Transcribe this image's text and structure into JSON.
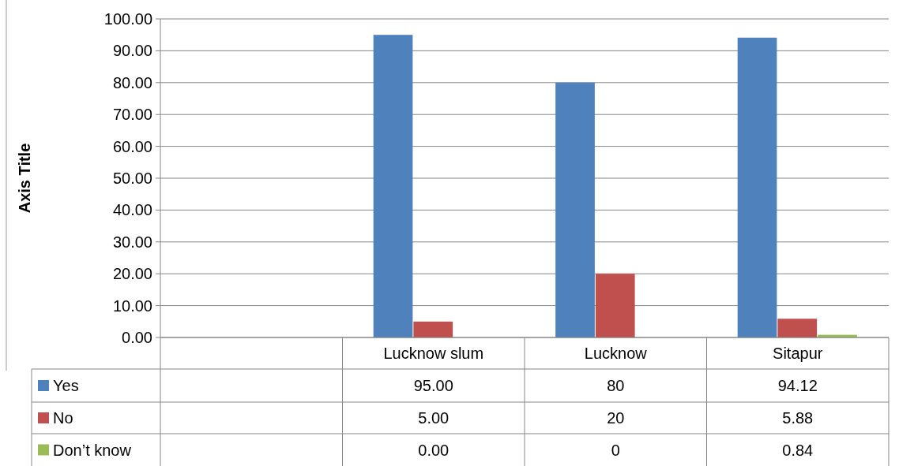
{
  "chart_data": {
    "type": "bar",
    "ylabel": "Axis Title",
    "categories": [
      null,
      "Lucknow slum",
      "Lucknow",
      "Sitapur"
    ],
    "series": [
      {
        "name": "Yes",
        "color": "#4f81bd",
        "values": [
          null,
          95.0,
          80,
          94.12
        ],
        "value_labels": [
          null,
          "95.00",
          "80",
          "94.12"
        ]
      },
      {
        "name": "No",
        "color": "#c0504d",
        "values": [
          null,
          5.0,
          20,
          5.88
        ],
        "value_labels": [
          null,
          "5.00",
          "20",
          "5.88"
        ]
      },
      {
        "name": "Don’t know",
        "color": "#9bbb59",
        "values": [
          null,
          0.0,
          0,
          0.84
        ],
        "value_labels": [
          null,
          "0.00",
          "0",
          "0.84"
        ]
      }
    ],
    "ylim": [
      0,
      100
    ],
    "yticks": [
      {
        "value": 0,
        "label": "0.00"
      },
      {
        "value": 10,
        "label": "10.00"
      },
      {
        "value": 20,
        "label": "20.00"
      },
      {
        "value": 30,
        "label": "30.00"
      },
      {
        "value": 40,
        "label": "40.00"
      },
      {
        "value": 50,
        "label": "50.00"
      },
      {
        "value": 60,
        "label": "60.00"
      },
      {
        "value": 70,
        "label": "70.00"
      },
      {
        "value": 80,
        "label": "80.00"
      },
      {
        "value": 90,
        "label": "90.00"
      },
      {
        "value": 100,
        "label": "100.00"
      }
    ],
    "grid": "y",
    "legend": "bottom"
  }
}
